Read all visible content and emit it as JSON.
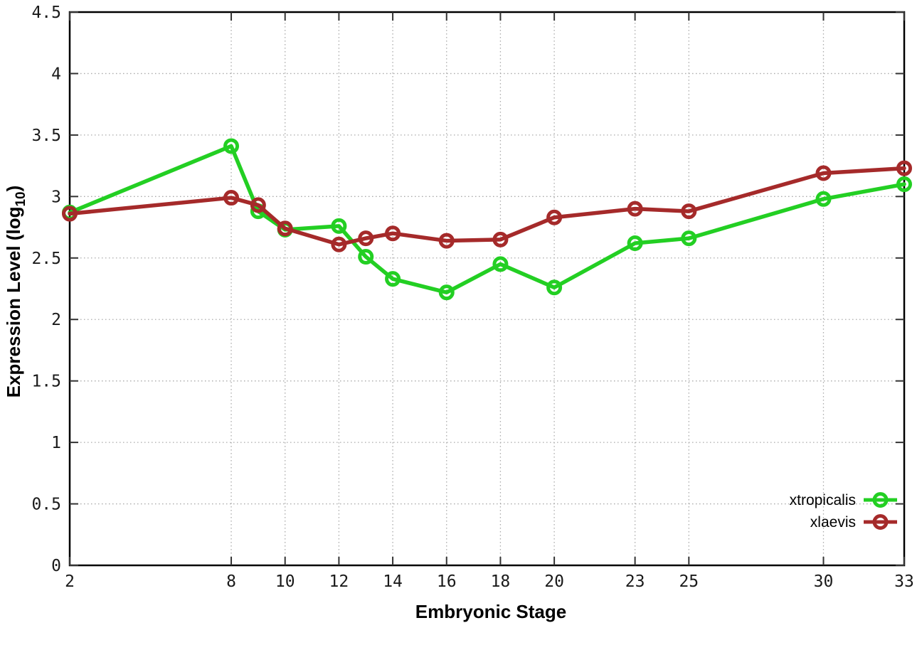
{
  "chart": {
    "xlabel": "Embryonic Stage",
    "ylabel": {
      "prefix": "Expression Level (log",
      "sub": "10",
      "suffix": ")"
    }
  },
  "chart_data": {
    "type": "line",
    "title": "",
    "xlabel": "Embryonic Stage",
    "ylabel": "Expression Level (log10)",
    "x": [
      2,
      8,
      9,
      10,
      12,
      13,
      14,
      16,
      18,
      20,
      23,
      25,
      30,
      33
    ],
    "series": [
      {
        "name": "xtropicalis",
        "color": "#23cf23",
        "marker": "open-circle",
        "values": [
          2.87,
          3.41,
          2.88,
          2.73,
          2.76,
          2.51,
          2.33,
          2.22,
          2.45,
          2.26,
          2.62,
          2.66,
          2.98,
          3.1
        ]
      },
      {
        "name": "xlaevis",
        "color": "#a52a2a",
        "marker": "open-circle",
        "values": [
          2.86,
          2.99,
          2.93,
          2.74,
          2.61,
          2.66,
          2.7,
          2.64,
          2.65,
          2.83,
          2.9,
          2.88,
          3.19,
          3.23
        ]
      }
    ],
    "xticks": [
      2,
      8,
      10,
      12,
      14,
      16,
      18,
      20,
      23,
      25,
      30,
      33
    ],
    "yticks": [
      0,
      0.5,
      1,
      1.5,
      2,
      2.5,
      3,
      3.5,
      4,
      4.5
    ],
    "xlim": [
      2,
      33
    ],
    "ylim": [
      0,
      4.5
    ],
    "grid": true,
    "grid_style": "dotted",
    "grid_color": "#aaaaaa",
    "axis_color": "#000000",
    "legend_position": "bottom-right-inside"
  }
}
